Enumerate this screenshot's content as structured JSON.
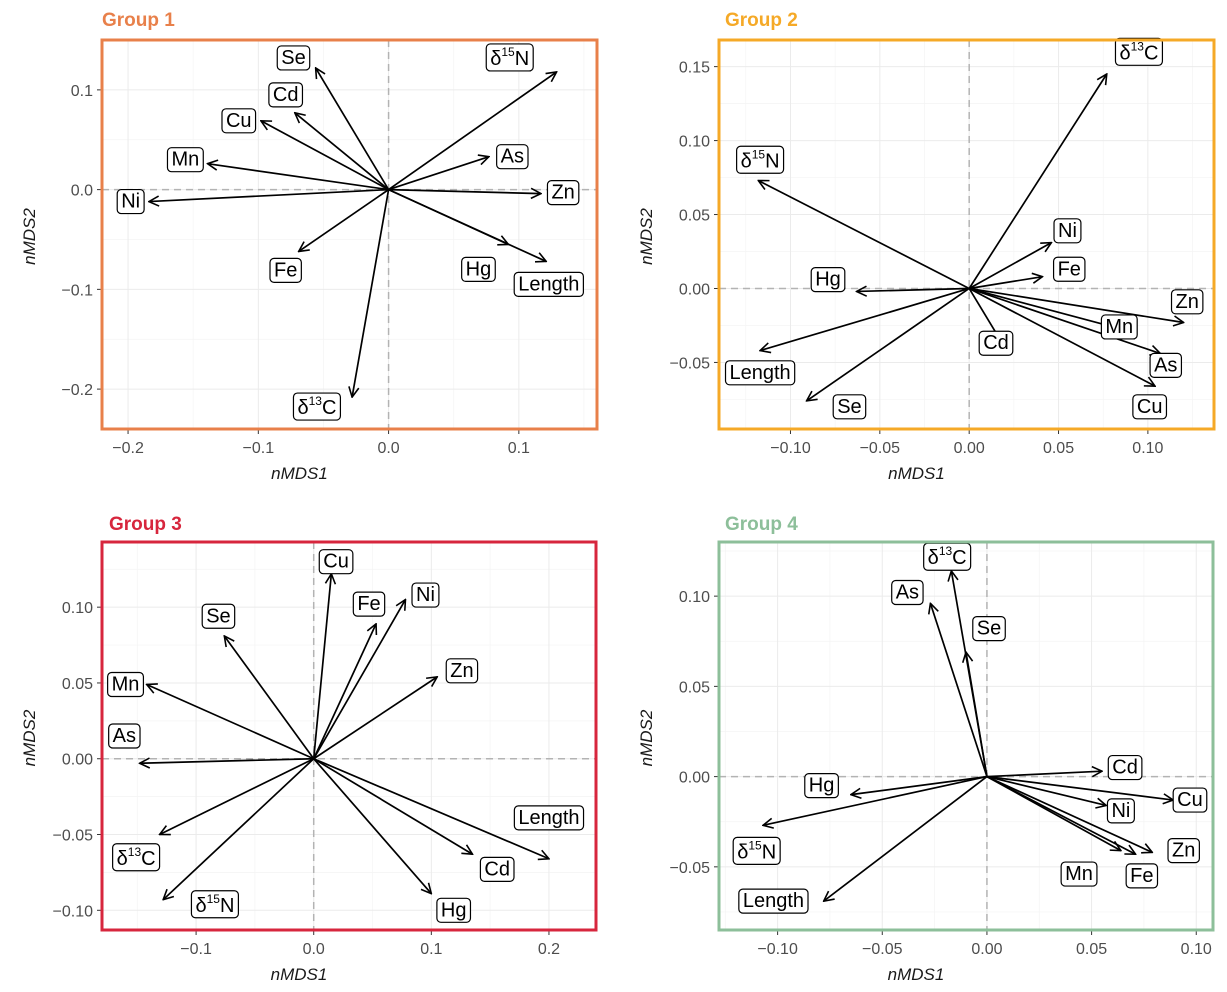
{
  "chart_data": [
    {
      "type": "vector-biplot",
      "title": "Group 1",
      "color": "#E8804A",
      "xlabel": "nMDS1",
      "ylabel": "nMDS2",
      "xlim": [
        -0.22,
        0.16
      ],
      "ylim": [
        -0.24,
        0.15
      ],
      "xticks": [
        -0.2,
        -0.1,
        0.0,
        0.1
      ],
      "yticks": [
        -0.2,
        -0.1,
        0.0,
        0.1
      ],
      "xtick_labels": [
        "−0.2",
        "−0.1",
        "0.0",
        "0.1"
      ],
      "ytick_labels": [
        "−0.2",
        "−0.1",
        "0.0",
        "0.1"
      ],
      "vectors": [
        {
          "label": "Se",
          "base": "Se",
          "sup": "",
          "x": -0.056,
          "y": 0.122,
          "lx": -0.073,
          "ly": 0.132
        },
        {
          "label": "Cd",
          "base": "Cd",
          "sup": "",
          "x": -0.072,
          "y": 0.077,
          "lx": -0.079,
          "ly": 0.095
        },
        {
          "label": "Cu",
          "base": "Cu",
          "sup": "",
          "x": -0.098,
          "y": 0.069,
          "lx": -0.115,
          "ly": 0.069
        },
        {
          "label": "Mn",
          "base": "Mn",
          "sup": "",
          "x": -0.139,
          "y": 0.026,
          "lx": -0.156,
          "ly": 0.03
        },
        {
          "label": "Ni",
          "base": "Ni",
          "sup": "",
          "x": -0.184,
          "y": -0.012,
          "lx": -0.198,
          "ly": -0.012
        },
        {
          "label": "Fe",
          "base": "Fe",
          "sup": "",
          "x": -0.069,
          "y": -0.062,
          "lx": -0.079,
          "ly": -0.081
        },
        {
          "label": "δ13C",
          "base": "δ",
          "sup": "13",
          "x": -0.028,
          "y": -0.208,
          "lx": -0.055,
          "ly": -0.219
        },
        {
          "label": "δ15N",
          "base": "δ",
          "sup": "15",
          "x": 0.129,
          "y": 0.118,
          "lx": 0.093,
          "ly": 0.131
        },
        {
          "label": "As",
          "base": "As",
          "sup": "",
          "x": 0.077,
          "y": 0.033,
          "lx": 0.095,
          "ly": 0.033
        },
        {
          "label": "Zn",
          "base": "Zn",
          "sup": "",
          "x": 0.117,
          "y": -0.004,
          "lx": 0.134,
          "ly": -0.003
        },
        {
          "label": "Hg",
          "base": "Hg",
          "sup": "",
          "x": 0.092,
          "y": -0.055,
          "lx": 0.069,
          "ly": -0.08
        },
        {
          "label": "Length",
          "base": "Length",
          "sup": "",
          "x": 0.121,
          "y": -0.072,
          "lx": 0.123,
          "ly": -0.095
        }
      ]
    },
    {
      "type": "vector-biplot",
      "title": "Group 2",
      "color": "#F5A927",
      "xlabel": "nMDS1",
      "ylabel": "nMDS2",
      "xlim": [
        -0.14,
        0.137
      ],
      "ylim": [
        -0.095,
        0.168
      ],
      "xticks": [
        -0.1,
        -0.05,
        0.0,
        0.05,
        0.1
      ],
      "yticks": [
        -0.05,
        0.0,
        0.05,
        0.1,
        0.15
      ],
      "xtick_labels": [
        "−0.10",
        "−0.05",
        "0.00",
        "0.05",
        "0.10"
      ],
      "ytick_labels": [
        "−0.05",
        "0.00",
        "0.05",
        "0.10",
        "0.15"
      ],
      "vectors": [
        {
          "label": "δ13C",
          "base": "δ",
          "sup": "13",
          "x": 0.077,
          "y": 0.145,
          "lx": 0.095,
          "ly": 0.159
        },
        {
          "label": "δ15N",
          "base": "δ",
          "sup": "15",
          "x": -0.118,
          "y": 0.073,
          "lx": -0.117,
          "ly": 0.086
        },
        {
          "label": "Ni",
          "base": "Ni",
          "sup": "",
          "x": 0.046,
          "y": 0.031,
          "lx": 0.055,
          "ly": 0.039
        },
        {
          "label": "Fe",
          "base": "Fe",
          "sup": "",
          "x": 0.041,
          "y": 0.008,
          "lx": 0.056,
          "ly": 0.013
        },
        {
          "label": "Hg",
          "base": "Hg",
          "sup": "",
          "x": -0.063,
          "y": -0.002,
          "lx": -0.079,
          "ly": 0.006
        },
        {
          "label": "Cd",
          "base": "Cd",
          "sup": "",
          "x": 0.021,
          "y": -0.042,
          "lx": 0.015,
          "ly": -0.037
        },
        {
          "label": "Zn",
          "base": "Zn",
          "sup": "",
          "x": 0.12,
          "y": -0.023,
          "lx": 0.122,
          "ly": -0.009
        },
        {
          "label": "Mn",
          "base": "Mn",
          "sup": "",
          "x": 0.093,
          "y": -0.03,
          "lx": 0.084,
          "ly": -0.026
        },
        {
          "label": "As",
          "base": "As",
          "sup": "",
          "x": 0.107,
          "y": -0.044,
          "lx": 0.11,
          "ly": -0.052
        },
        {
          "label": "Cu",
          "base": "Cu",
          "sup": "",
          "x": 0.104,
          "y": -0.066,
          "lx": 0.101,
          "ly": -0.08
        },
        {
          "label": "Length",
          "base": "Length",
          "sup": "",
          "x": -0.117,
          "y": -0.042,
          "lx": -0.117,
          "ly": -0.057
        },
        {
          "label": "Se",
          "base": "Se",
          "sup": "",
          "x": -0.091,
          "y": -0.076,
          "lx": -0.067,
          "ly": -0.08
        }
      ]
    },
    {
      "type": "vector-biplot",
      "title": "Group 3",
      "color": "#D7263D",
      "xlabel": "nMDS1",
      "ylabel": "nMDS2",
      "xlim": [
        -0.18,
        0.24
      ],
      "ylim": [
        -0.113,
        0.143
      ],
      "xticks": [
        -0.1,
        0.0,
        0.1,
        0.2
      ],
      "yticks": [
        -0.1,
        -0.05,
        0.0,
        0.05,
        0.1
      ],
      "xtick_labels": [
        "−0.1",
        "0.0",
        "0.1",
        "0.2"
      ],
      "ytick_labels": [
        "−0.10",
        "−0.05",
        "0.00",
        "0.05",
        "0.10"
      ],
      "vectors": [
        {
          "label": "Cu",
          "base": "Cu",
          "sup": "",
          "x": 0.015,
          "y": 0.122,
          "lx": 0.019,
          "ly": 0.13
        },
        {
          "label": "Fe",
          "base": "Fe",
          "sup": "",
          "x": 0.053,
          "y": 0.089,
          "lx": 0.047,
          "ly": 0.102
        },
        {
          "label": "Ni",
          "base": "Ni",
          "sup": "",
          "x": 0.078,
          "y": 0.105,
          "lx": 0.095,
          "ly": 0.108
        },
        {
          "label": "Se",
          "base": "Se",
          "sup": "",
          "x": -0.076,
          "y": 0.081,
          "lx": -0.081,
          "ly": 0.094
        },
        {
          "label": "Zn",
          "base": "Zn",
          "sup": "",
          "x": 0.105,
          "y": 0.054,
          "lx": 0.126,
          "ly": 0.058
        },
        {
          "label": "Mn",
          "base": "Mn",
          "sup": "",
          "x": -0.142,
          "y": 0.049,
          "lx": -0.16,
          "ly": 0.049
        },
        {
          "label": "As",
          "base": "As",
          "sup": "",
          "x": -0.148,
          "y": -0.003,
          "lx": -0.161,
          "ly": 0.015
        },
        {
          "label": "δ13C",
          "base": "δ",
          "sup": "13",
          "x": -0.131,
          "y": -0.05,
          "lx": -0.151,
          "ly": -0.066
        },
        {
          "label": "δ15N",
          "base": "δ",
          "sup": "15",
          "x": -0.128,
          "y": -0.093,
          "lx": -0.084,
          "ly": -0.097
        },
        {
          "label": "Length",
          "base": "Length",
          "sup": "",
          "x": 0.2,
          "y": -0.066,
          "lx": 0.2,
          "ly": -0.039
        },
        {
          "label": "Cd",
          "base": "Cd",
          "sup": "",
          "x": 0.135,
          "y": -0.063,
          "lx": 0.156,
          "ly": -0.073
        },
        {
          "label": "Hg",
          "base": "Hg",
          "sup": "",
          "x": 0.1,
          "y": -0.089,
          "lx": 0.119,
          "ly": -0.1
        }
      ]
    },
    {
      "type": "vector-biplot",
      "title": "Group 4",
      "color": "#8DBF9A",
      "xlabel": "nMDS1",
      "ylabel": "nMDS2",
      "xlim": [
        -0.128,
        0.108
      ],
      "ylim": [
        -0.085,
        0.13
      ],
      "xticks": [
        -0.1,
        -0.05,
        0.0,
        0.05,
        0.1
      ],
      "yticks": [
        -0.05,
        0.0,
        0.05,
        0.1
      ],
      "xtick_labels": [
        "−0.10",
        "−0.05",
        "0.00",
        "0.05",
        "0.10"
      ],
      "ytick_labels": [
        "−0.05",
        "0.00",
        "0.05",
        "0.10"
      ],
      "vectors": [
        {
          "label": "δ13C",
          "base": "δ",
          "sup": "13",
          "x": -0.017,
          "y": 0.114,
          "lx": -0.019,
          "ly": 0.121
        },
        {
          "label": "As",
          "base": "As",
          "sup": "",
          "x": -0.027,
          "y": 0.096,
          "lx": -0.038,
          "ly": 0.102
        },
        {
          "label": "Se",
          "base": "Se",
          "sup": "",
          "x": -0.01,
          "y": 0.069,
          "lx": 0.001,
          "ly": 0.082
        },
        {
          "label": "Cd",
          "base": "Cd",
          "sup": "",
          "x": 0.055,
          "y": 0.003,
          "lx": 0.066,
          "ly": 0.005
        },
        {
          "label": "Cu",
          "base": "Cu",
          "sup": "",
          "x": 0.089,
          "y": -0.013,
          "lx": 0.097,
          "ly": -0.013
        },
        {
          "label": "Ni",
          "base": "Ni",
          "sup": "",
          "x": 0.057,
          "y": -0.016,
          "lx": 0.064,
          "ly": -0.019
        },
        {
          "label": "Zn",
          "base": "Zn",
          "sup": "",
          "x": 0.079,
          "y": -0.042,
          "lx": 0.094,
          "ly": -0.041
        },
        {
          "label": "Fe",
          "base": "Fe",
          "sup": "",
          "x": 0.071,
          "y": -0.043,
          "lx": 0.074,
          "ly": -0.055
        },
        {
          "label": "Mn",
          "base": "Mn",
          "sup": "",
          "x": 0.064,
          "y": -0.041,
          "lx": 0.044,
          "ly": -0.054
        },
        {
          "label": "Hg",
          "base": "Hg",
          "sup": "",
          "x": -0.065,
          "y": -0.01,
          "lx": -0.079,
          "ly": -0.005
        },
        {
          "label": "δ15N",
          "base": "δ",
          "sup": "15",
          "x": -0.107,
          "y": -0.027,
          "lx": -0.11,
          "ly": -0.042
        },
        {
          "label": "Length",
          "base": "Length",
          "sup": "",
          "x": -0.078,
          "y": -0.069,
          "lx": -0.102,
          "ly": -0.069
        }
      ]
    }
  ]
}
